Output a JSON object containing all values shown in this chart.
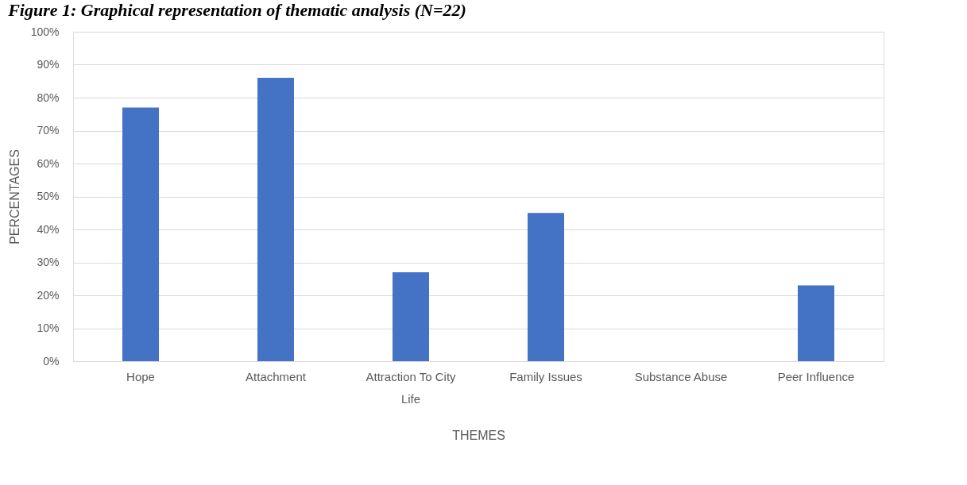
{
  "chart_data": {
    "type": "bar",
    "title": "Figure 1: Graphical representation of thematic analysis (N=22)",
    "xlabel": "THEMES",
    "ylabel": "PERCENTAGES",
    "categories": [
      "Hope",
      "Attachment",
      "Attraction To City Life",
      "Family Issues",
      "Substance Abuse",
      "Peer Influence"
    ],
    "values": [
      77,
      86,
      27,
      45,
      0,
      23
    ],
    "color": "#4472c4",
    "ylim": [
      0,
      100
    ],
    "yticks": [
      {
        "value": 0,
        "label": "0%"
      },
      {
        "value": 10,
        "label": "10%"
      },
      {
        "value": 20,
        "label": "20%"
      },
      {
        "value": 30,
        "label": "30%"
      },
      {
        "value": 40,
        "label": "40%"
      },
      {
        "value": 50,
        "label": "50%"
      },
      {
        "value": 60,
        "label": "60%"
      },
      {
        "value": 70,
        "label": "70%"
      },
      {
        "value": 80,
        "label": "80%"
      },
      {
        "value": 90,
        "label": "90%"
      },
      {
        "value": 100,
        "label": "100%"
      }
    ],
    "grid": "y"
  }
}
